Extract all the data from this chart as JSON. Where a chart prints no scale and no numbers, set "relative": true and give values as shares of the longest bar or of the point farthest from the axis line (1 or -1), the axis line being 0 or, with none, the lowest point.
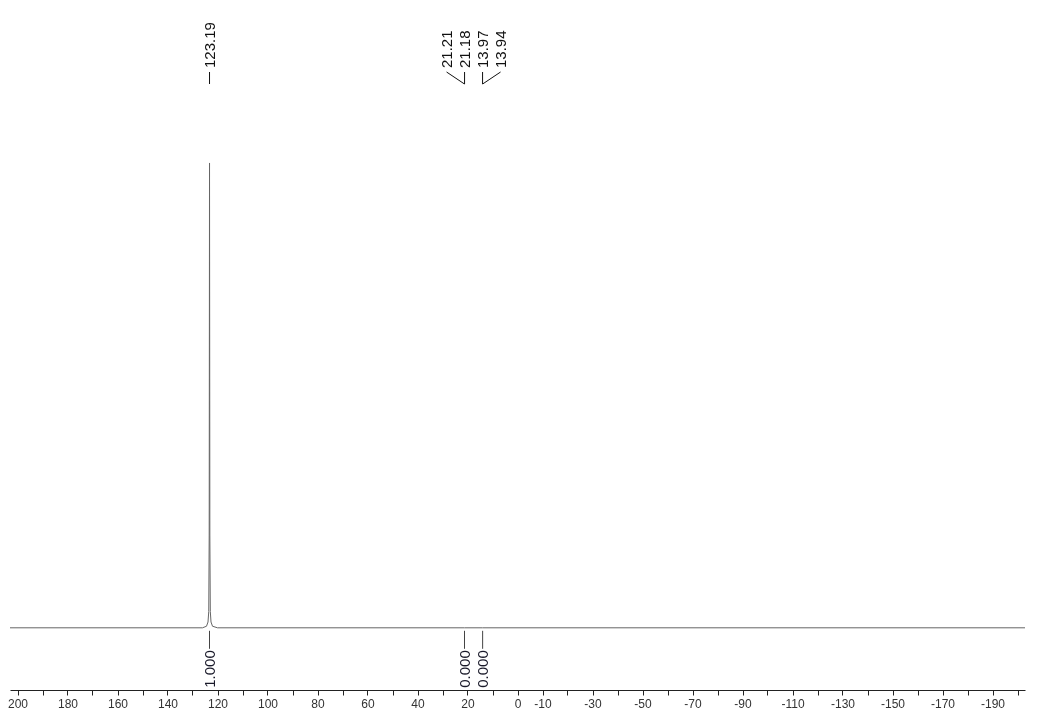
{
  "chart_data": {
    "type": "line",
    "relative": true,
    "x": [
      203,
      126,
      124.4,
      123.8,
      123.5,
      123.32,
      123.19,
      123.06,
      122.88,
      122.6,
      122.0,
      120,
      21.21,
      21.18,
      13.97,
      13.94,
      -203
    ],
    "series": [
      {
        "color": "#666666",
        "values": [
          0.118,
          0.118,
          0.121,
          0.129,
          0.149,
          0.294,
          1,
          0.294,
          0.149,
          0.129,
          0.121,
          0.118,
          0.118,
          0.118,
          0.118,
          0.118,
          0.118
        ]
      }
    ],
    "xlim": [
      203,
      -203
    ],
    "xticks": [
      200,
      {
        "value": 190,
        "label": null
      },
      180,
      {
        "value": 170,
        "label": null
      },
      160,
      {
        "value": 150,
        "label": null
      },
      140,
      {
        "value": 130,
        "label": null
      },
      120,
      {
        "value": 110,
        "label": null
      },
      100,
      {
        "value": 90,
        "label": null
      },
      80,
      {
        "value": 70,
        "label": null
      },
      60,
      {
        "value": 50,
        "label": null
      },
      40,
      {
        "value": 30,
        "label": null
      },
      20,
      {
        "value": 10,
        "label": null
      },
      0,
      -10,
      {
        "value": -20,
        "label": null
      },
      -30,
      {
        "value": -40,
        "label": null
      },
      -50,
      {
        "value": -60,
        "label": null
      },
      -70,
      {
        "value": -80,
        "label": null
      },
      -90,
      {
        "value": -100,
        "label": null
      },
      -110,
      {
        "value": -120,
        "label": null
      },
      -130,
      {
        "value": -140,
        "label": null
      },
      -150,
      {
        "value": -160,
        "label": null
      },
      -170,
      {
        "value": -180,
        "label": null
      },
      -190,
      {
        "value": -200,
        "label": null
      }
    ],
    "annotations": [
      {
        "text": "123.19",
        "x": 123.19
      },
      {
        "text": "21.21",
        "x": 21.21
      },
      {
        "text": "21.18",
        "x": 21.18
      },
      {
        "text": "13.97",
        "x": 13.97
      },
      {
        "text": "13.94",
        "x": 13.94
      },
      {
        "text": "1.000",
        "x": 123.2,
        "y": 0.118
      },
      {
        "text": "0.000",
        "x": 21.2,
        "y": 0.118
      },
      {
        "text": "0.000",
        "x": 13.95,
        "y": 0.118
      }
    ]
  }
}
